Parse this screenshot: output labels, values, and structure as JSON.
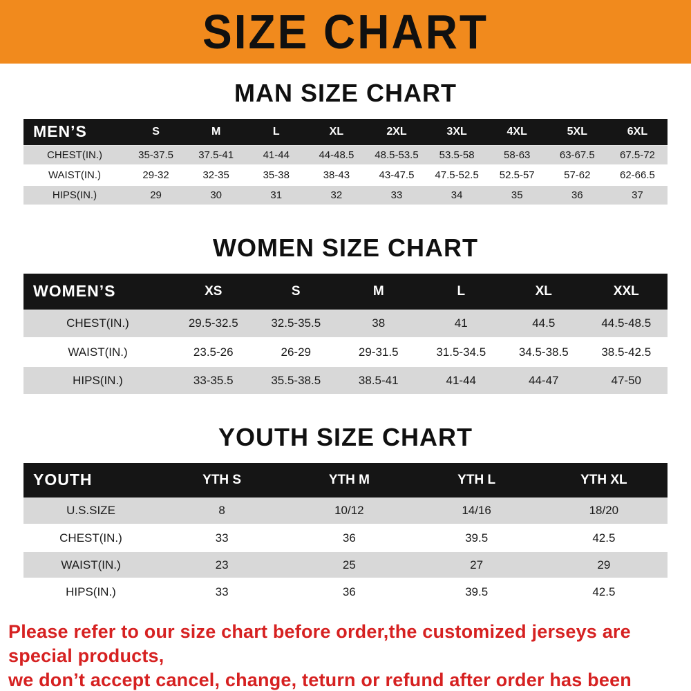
{
  "banner": {
    "title": "SIZE CHART"
  },
  "colors": {
    "banner_bg": "#f18a1d",
    "header_bg": "#151515",
    "row_alt": "#d8d8d8",
    "footer_text": "#d62121"
  },
  "sections": [
    {
      "title": "MAN SIZE CHART",
      "header_label": "MEN’S",
      "columns": [
        "S",
        "M",
        "L",
        "XL",
        "2XL",
        "3XL",
        "4XL",
        "5XL",
        "6XL"
      ],
      "rows": [
        {
          "label": "CHEST(IN.)",
          "values": [
            "35-37.5",
            "37.5-41",
            "41-44",
            "44-48.5",
            "48.5-53.5",
            "53.5-58",
            "58-63",
            "63-67.5",
            "67.5-72"
          ]
        },
        {
          "label": "WAIST(IN.)",
          "values": [
            "29-32",
            "32-35",
            "35-38",
            "38-43",
            "43-47.5",
            "47.5-52.5",
            "52.5-57",
            "57-62",
            "62-66.5"
          ]
        },
        {
          "label": "HIPS(IN.)",
          "values": [
            "29",
            "30",
            "31",
            "32",
            "33",
            "34",
            "35",
            "36",
            "37"
          ]
        }
      ]
    },
    {
      "title": "WOMEN SIZE CHART",
      "header_label": "WOMEN’S",
      "columns": [
        "XS",
        "S",
        "M",
        "L",
        "XL",
        "XXL"
      ],
      "rows": [
        {
          "label": "CHEST(IN.)",
          "values": [
            "29.5-32.5",
            "32.5-35.5",
            "38",
            "41",
            "44.5",
            "44.5-48.5"
          ]
        },
        {
          "label": "WAIST(IN.)",
          "values": [
            "23.5-26",
            "26-29",
            "29-31.5",
            "31.5-34.5",
            "34.5-38.5",
            "38.5-42.5"
          ]
        },
        {
          "label": "HIPS(IN.)",
          "values": [
            "33-35.5",
            "35.5-38.5",
            "38.5-41",
            "41-44",
            "44-47",
            "47-50"
          ]
        }
      ]
    },
    {
      "title": "YOUTH SIZE CHART",
      "header_label": "YOUTH",
      "columns": [
        "YTH S",
        "YTH M",
        "YTH L",
        "YTH XL"
      ],
      "rows": [
        {
          "label": "U.S.SIZE",
          "values": [
            "8",
            "10/12",
            "14/16",
            "18/20"
          ]
        },
        {
          "label": "CHEST(IN.)",
          "values": [
            "33",
            "36",
            "39.5",
            "42.5"
          ]
        },
        {
          "label": "WAIST(IN.)",
          "values": [
            "23",
            "25",
            "27",
            "29"
          ]
        },
        {
          "label": "HIPS(IN.)",
          "values": [
            "33",
            "36",
            "39.5",
            "42.5"
          ]
        }
      ]
    }
  ],
  "footer": {
    "line1": "Please refer to our size chart before order,the customized jerseys are special products,",
    "line2": "we don’t accept cancel, change, teturn or refund after order has been placed!"
  }
}
